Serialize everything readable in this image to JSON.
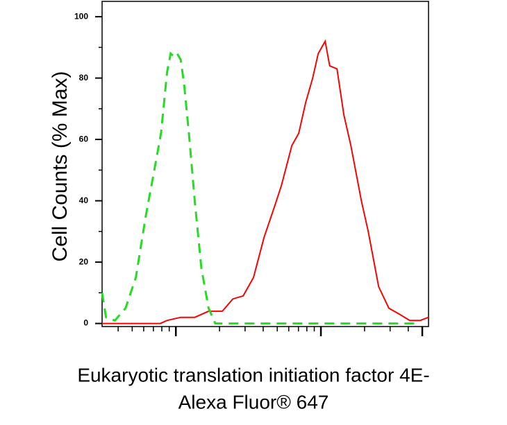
{
  "chart_data": {
    "type": "line",
    "y_label": "Cell Counts (% Max)",
    "x_label": [
      "Eukaryotic translation initiation factor 4E-",
      "Alexa Fluor® 647"
    ],
    "xscale": "log",
    "xlim": [
      31,
      5520
    ],
    "xticks": [
      40,
      50,
      60,
      70,
      80,
      90,
      100,
      200,
      300,
      400,
      500,
      600,
      700,
      800,
      900,
      1000,
      2000,
      3000,
      4000,
      5000
    ],
    "xmajorticks": [
      100,
      1000,
      5000
    ],
    "ylim": [
      -1,
      105
    ],
    "yticks": [
      0,
      20,
      40,
      60,
      80,
      100
    ],
    "yminorticks": [
      10,
      30,
      50,
      70,
      90
    ],
    "series": [
      {
        "color": "#ff0000",
        "dash": false,
        "x": [
          31,
          78,
          87,
          108,
          135,
          168,
          209,
          247,
          291,
          343,
          405,
          478,
          534,
          630,
          703,
          785,
          877,
          958,
          1070,
          1150,
          1290,
          1440,
          1610,
          1900,
          2120,
          2500,
          2940,
          3480,
          4100,
          4830,
          5520
        ],
        "values": [
          0,
          0,
          1,
          2,
          2,
          4,
          4,
          8,
          9,
          15,
          28,
          38,
          45,
          58,
          62,
          72,
          80,
          88,
          92,
          84,
          83,
          68,
          58,
          40,
          30,
          12,
          5,
          3,
          1,
          1,
          2
        ]
      },
      {
        "color": "#22dd22",
        "dash": true,
        "x": [
          31,
          33,
          38,
          45,
          53,
          62,
          71,
          79,
          87,
          92,
          97,
          102,
          108,
          114,
          123,
          135,
          150,
          168,
          187,
          233,
          4570
        ],
        "values": [
          10,
          2,
          1,
          5,
          15,
          35,
          50,
          62,
          82,
          88,
          87,
          88,
          86,
          78,
          62,
          40,
          18,
          5,
          0,
          0,
          0
        ]
      }
    ]
  }
}
